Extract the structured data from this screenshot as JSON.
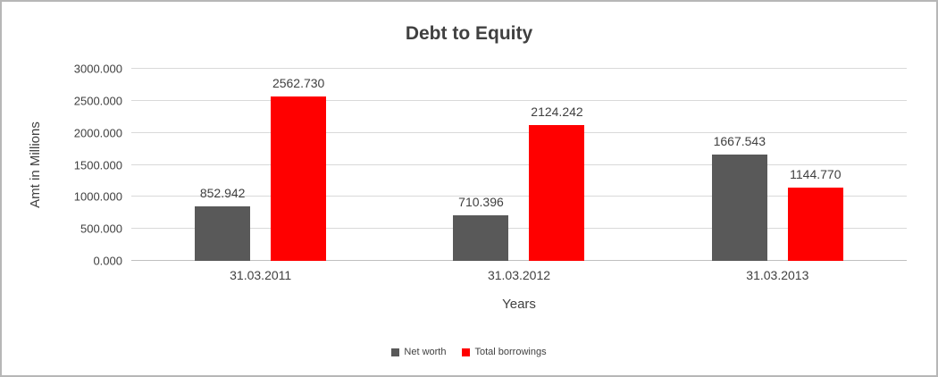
{
  "chart_data": {
    "type": "bar",
    "title": "Debt to Equity",
    "categories": [
      "31.03.2011",
      "31.03.2012",
      "31.03.2013"
    ],
    "series": [
      {
        "name": "Net worth",
        "color": "#595959",
        "values": [
          852.942,
          710.396,
          1667.543
        ]
      },
      {
        "name": "Total borrowings",
        "color": "#ff0000",
        "values": [
          2562.73,
          2124.242,
          1144.77
        ]
      }
    ],
    "xlabel": "Years",
    "ylabel": "Amt in Millions",
    "ylim": [
      0,
      3000
    ],
    "ytick_step": 500,
    "label_decimals": 3,
    "grid": true,
    "legend_position": "bottom"
  },
  "colors": {
    "text": "#404040",
    "gridline": "#d9d9d9",
    "axis_line": "#bfbfbf",
    "frame_border": "#b7b7b7"
  }
}
